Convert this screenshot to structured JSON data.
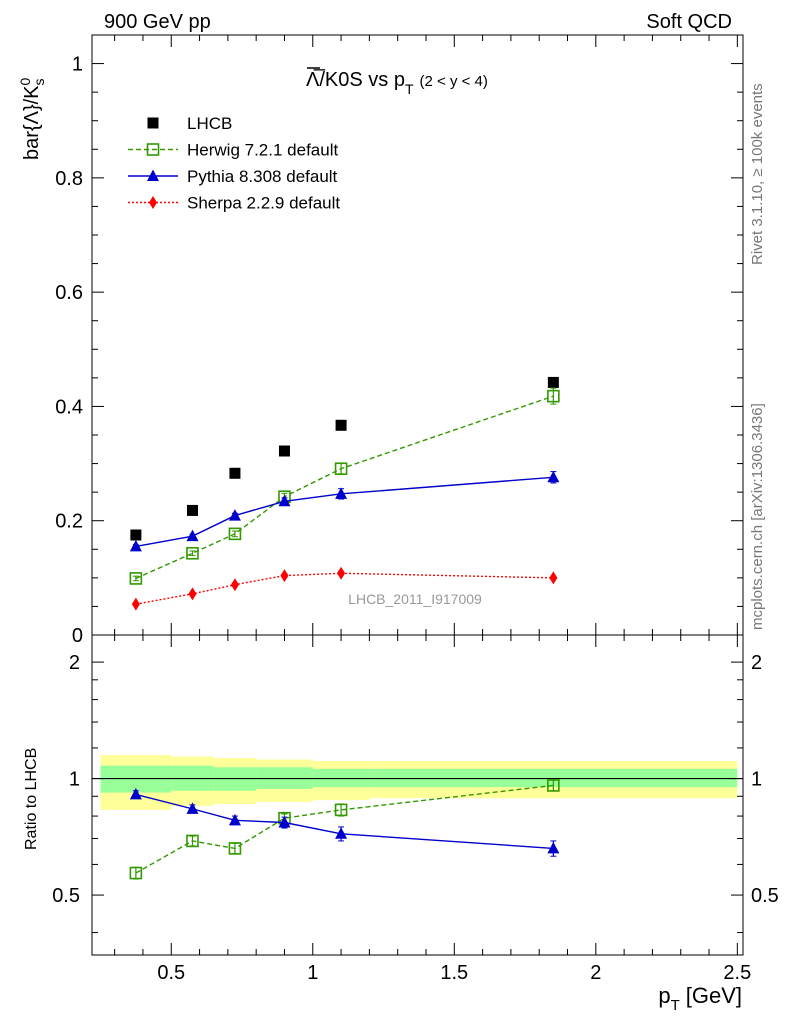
{
  "header": {
    "left": "900 GeV pp",
    "right": "Soft QCD"
  },
  "side_text": {
    "rivet": "Rivet 3.1.10, ≥ 100k events",
    "mcplots": "mcplots.cern.ch [arXiv:1306.3436]"
  },
  "chart_data": [
    {
      "type": "scatter",
      "title_main": "Λ̅/K0S vs p",
      "title_sub": "T",
      "title_range": "(2 < y < 4)",
      "ylabel": "bar{Λ}/K",
      "ylabel_sup": "0",
      "ylabel_sub": "s",
      "watermark": "LHCB_2011_I917009",
      "xlim": [
        0.22,
        2.52
      ],
      "ylim": [
        0,
        1.05
      ],
      "y_ticks": [
        "0",
        "0.2",
        "0.4",
        "0.6",
        "0.8",
        "1"
      ],
      "legend_position": "top-left",
      "x": [
        0.375,
        0.575,
        0.725,
        0.9,
        1.1,
        1.85
      ],
      "series": [
        {
          "name": "LHCB",
          "color": "#000000",
          "marker": "square-filled",
          "line": "none",
          "values": [
            0.175,
            0.218,
            0.283,
            0.322,
            0.367,
            0.442
          ],
          "errors": [
            0.003,
            0.003,
            0.003,
            0.003,
            0.003,
            0.003
          ]
        },
        {
          "name": "Herwig 7.2.1 default",
          "color": "#339900",
          "marker": "square-open",
          "line": "dashed",
          "values": [
            0.099,
            0.143,
            0.177,
            0.242,
            0.291,
            0.418
          ],
          "errors": [
            0.004,
            0.004,
            0.005,
            0.006,
            0.009,
            0.014
          ]
        },
        {
          "name": "Pythia 8.308 default",
          "color": "#0000cc",
          "marker": "triangle",
          "line": "solid",
          "values": [
            0.155,
            0.173,
            0.209,
            0.234,
            0.247,
            0.276
          ],
          "errors": [
            0.003,
            0.003,
            0.004,
            0.006,
            0.009,
            0.01
          ]
        },
        {
          "name": "Sherpa 2.2.9 default",
          "color": "#ff0000",
          "marker": "diamond",
          "line": "dotted",
          "values": [
            0.054,
            0.072,
            0.088,
            0.104,
            0.108,
            0.1
          ],
          "errors": [
            0.002,
            0.002,
            0.002,
            0.003,
            0.003,
            0.003
          ]
        }
      ]
    },
    {
      "type": "scatter",
      "ylabel": "Ratio to LHCB",
      "xlabel": "p",
      "xlabel_sub": "T",
      "xlabel_unit": "[GeV]",
      "xlim": [
        0.22,
        2.52
      ],
      "ylim": [
        0.35,
        2.35
      ],
      "x_ticks": [
        "0.5",
        "1",
        "1.5",
        "2",
        "2.5"
      ],
      "y_ticks": [
        "0.5",
        "1",
        "2"
      ],
      "reference_line": 1,
      "uncertainty_bands": [
        {
          "x_start": 0.25,
          "x_end": 0.5,
          "inner": [
            0.92,
            1.08
          ],
          "outer": [
            0.83,
            1.15
          ]
        },
        {
          "x_start": 0.5,
          "x_end": 0.65,
          "inner": [
            0.93,
            1.08
          ],
          "outer": [
            0.85,
            1.14
          ]
        },
        {
          "x_start": 0.65,
          "x_end": 0.8,
          "inner": [
            0.93,
            1.07
          ],
          "outer": [
            0.86,
            1.13
          ]
        },
        {
          "x_start": 0.8,
          "x_end": 1.0,
          "inner": [
            0.94,
            1.07
          ],
          "outer": [
            0.87,
            1.12
          ]
        },
        {
          "x_start": 1.0,
          "x_end": 1.2,
          "inner": [
            0.95,
            1.06
          ],
          "outer": [
            0.88,
            1.11
          ]
        },
        {
          "x_start": 1.2,
          "x_end": 2.5,
          "inner": [
            0.95,
            1.06
          ],
          "outer": [
            0.89,
            1.11
          ]
        }
      ],
      "band_colors": {
        "inner": "#99ff99",
        "outer": "#ffff99"
      },
      "x": [
        0.375,
        0.575,
        0.725,
        0.9,
        1.1,
        1.85
      ],
      "series": [
        {
          "name": "Herwig 7.2.1 default",
          "color": "#339900",
          "marker": "square-open",
          "line": "dashed",
          "values": [
            0.57,
            0.69,
            0.66,
            0.79,
            0.83,
            0.96
          ],
          "errors": [
            0.02,
            0.02,
            0.02,
            0.02,
            0.03,
            0.03
          ]
        },
        {
          "name": "Pythia 8.308 default",
          "color": "#0000cc",
          "marker": "triangle",
          "line": "solid",
          "values": [
            0.91,
            0.835,
            0.78,
            0.77,
            0.72,
            0.66
          ],
          "errors": [
            0.02,
            0.02,
            0.02,
            0.025,
            0.03,
            0.03
          ]
        }
      ]
    }
  ]
}
